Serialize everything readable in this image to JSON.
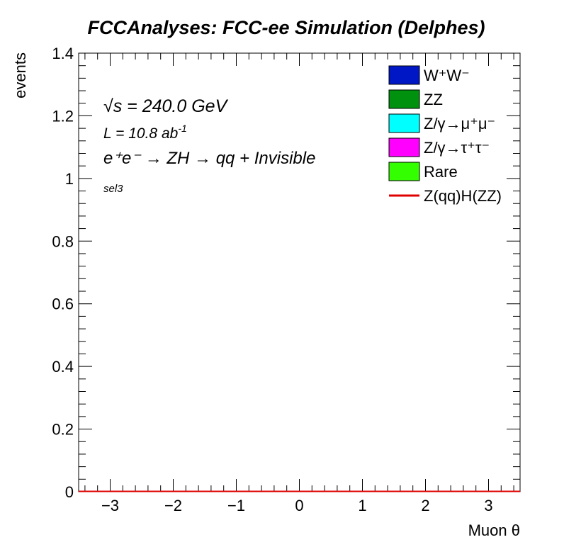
{
  "chart_data": {
    "type": "bar",
    "title": "FCCAnalyses: FCC-ee Simulation (Delphes)",
    "xlabel": "Muon θ",
    "ylabel": "events",
    "xlim": [
      -3.5,
      3.5
    ],
    "ylim": [
      0,
      1.4
    ],
    "x_ticks": [
      -3,
      -2,
      -1,
      0,
      1,
      2,
      3
    ],
    "x_tick_labels": [
      "−3",
      "−2",
      "−1",
      "0",
      "1",
      "2",
      "3"
    ],
    "y_ticks": [
      0,
      0.2,
      0.4,
      0.6,
      0.8,
      1,
      1.2,
      1.4
    ],
    "y_tick_labels": [
      "0",
      "0.2",
      "0.4",
      "0.6",
      "0.8",
      "1",
      "1.2",
      "1.4"
    ],
    "grid": false,
    "legend_position": "top-right",
    "annotations": {
      "sqrt_s_symbol": "√s",
      "sqrt_s_rest": " = 240.0 GeV",
      "lumi_main": "L = 10.8 ab",
      "lumi_exp": "-1",
      "process": "e⁺e⁻ → ZH → qq + Invisible",
      "selection": "sel3"
    },
    "series": [
      {
        "name": "W⁺W⁻",
        "style": "fill",
        "color": "#0017c6",
        "values": [
          0
        ]
      },
      {
        "name": "ZZ",
        "style": "fill",
        "color": "#00910f",
        "values": [
          0
        ]
      },
      {
        "name": "Z/γ→μ⁺μ⁻",
        "style": "fill",
        "color": "#00ffff",
        "values": [
          0
        ]
      },
      {
        "name": "Z/γ→τ⁺τ⁻",
        "style": "fill",
        "color": "#ff00ff",
        "values": [
          0
        ]
      },
      {
        "name": "Rare",
        "style": "fill",
        "color": "#33ff00",
        "values": [
          0
        ]
      },
      {
        "name": "Z(qq)H(ZZ)",
        "style": "line",
        "color": "#e00000",
        "values": [
          0
        ]
      }
    ]
  }
}
